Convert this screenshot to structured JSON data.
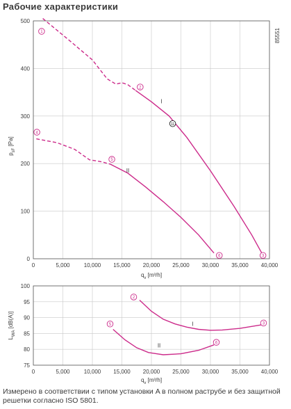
{
  "page": {
    "title": "Рабочие характеристики",
    "reference_number": "85551",
    "footnote": "Измерено в соответствии с типом установки A в полном раструбе и без защитной решетки согласно ISO 5801."
  },
  "colors": {
    "curve": "#cc2a8a",
    "grid": "#c8c8c8",
    "axis": "#555555",
    "text": "#3a3a3a"
  },
  "chart_data": [
    {
      "type": "line",
      "ylabel": "p_sF [Pa]",
      "xlabel": "q_v [m³/h]",
      "xlim": [
        0,
        40000
      ],
      "ylim": [
        0,
        500
      ],
      "xticks": [
        "0",
        "5,000",
        "10,000",
        "15,000",
        "20,000",
        "25,000",
        "30,000",
        "35,000",
        "40,000"
      ],
      "yticks": [
        "0",
        "100",
        "200",
        "300",
        "400",
        "500"
      ],
      "grid": true,
      "series": [
        {
          "name": "I",
          "dashed": [
            [
              1600,
              505
            ],
            [
              6000,
              460
            ],
            [
              10000,
              418
            ],
            [
              12500,
              378
            ],
            [
              14000,
              367
            ],
            [
              15000,
              370
            ],
            [
              16000,
              366
            ],
            [
              17300,
              354
            ]
          ],
          "solid": [
            [
              17300,
              354
            ],
            [
              20000,
              330
            ],
            [
              23000,
              300
            ],
            [
              26000,
              255
            ],
            [
              30000,
              185
            ],
            [
              34000,
              110
            ],
            [
              37000,
              50
            ],
            [
              38700,
              12
            ]
          ]
        },
        {
          "name": "II",
          "dashed": [
            [
              500,
              252
            ],
            [
              4000,
              244
            ],
            [
              7000,
              230
            ],
            [
              9500,
              208
            ],
            [
              11500,
              204
            ],
            [
              13000,
              199
            ]
          ],
          "solid": [
            [
              13000,
              199
            ],
            [
              16000,
              180
            ],
            [
              19000,
              151
            ],
            [
              22000,
              120
            ],
            [
              25000,
              87
            ],
            [
              28000,
              50
            ],
            [
              30600,
              12
            ]
          ]
        }
      ],
      "markers": [
        {
          "label": "1",
          "x": 1400,
          "y": 478
        },
        {
          "label": "2",
          "x": 18100,
          "y": 361
        },
        {
          "label": "3",
          "x": 38900,
          "y": 7
        },
        {
          "label": "4",
          "x": 600,
          "y": 266
        },
        {
          "label": "5",
          "x": 13300,
          "y": 209
        },
        {
          "label": "6",
          "x": 31500,
          "y": 7
        },
        {
          "label": "11",
          "x": 23600,
          "y": 284
        }
      ],
      "curve_labels": [
        {
          "text": "I",
          "x": 21700,
          "y": 327
        },
        {
          "text": "II",
          "x": 16000,
          "y": 181
        }
      ]
    },
    {
      "type": "line",
      "ylabel": "L_WA [dB(A)]",
      "xlabel": "q_v [m³/h]",
      "xlim": [
        0,
        40000
      ],
      "ylim": [
        75,
        100
      ],
      "xticks": [
        "0",
        "5,000",
        "10,000",
        "15,000",
        "20,000",
        "25,000",
        "30,000",
        "35,000",
        "40,000"
      ],
      "yticks": [
        "75",
        "80",
        "85",
        "90",
        "95",
        "100"
      ],
      "grid": true,
      "series": [
        {
          "name": "I",
          "solid": [
            [
              18000,
              95.5
            ],
            [
              20000,
              92.0
            ],
            [
              22000,
              89.5
            ],
            [
              24000,
              88.0
            ],
            [
              26000,
              87.0
            ],
            [
              28000,
              86.3
            ],
            [
              30000,
              86.0
            ],
            [
              32000,
              86.1
            ],
            [
              35000,
              86.6
            ],
            [
              38600,
              87.7
            ]
          ]
        },
        {
          "name": "II",
          "solid": [
            [
              13500,
              86.3
            ],
            [
              15500,
              83.0
            ],
            [
              17500,
              80.5
            ],
            [
              19500,
              79.0
            ],
            [
              22000,
              78.3
            ],
            [
              25000,
              78.6
            ],
            [
              28000,
              79.7
            ],
            [
              30600,
              81.4
            ]
          ]
        }
      ],
      "markers": [
        {
          "label": "2",
          "x": 17000,
          "y": 96.5
        },
        {
          "label": "3",
          "x": 39000,
          "y": 88.3
        },
        {
          "label": "5",
          "x": 13000,
          "y": 88.0
        },
        {
          "label": "6",
          "x": 31000,
          "y": 82.2
        }
      ],
      "curve_labels": [
        {
          "text": "I",
          "x": 27000,
          "y": 87.4
        },
        {
          "text": "II",
          "x": 21300,
          "y": 80.6
        }
      ]
    }
  ]
}
